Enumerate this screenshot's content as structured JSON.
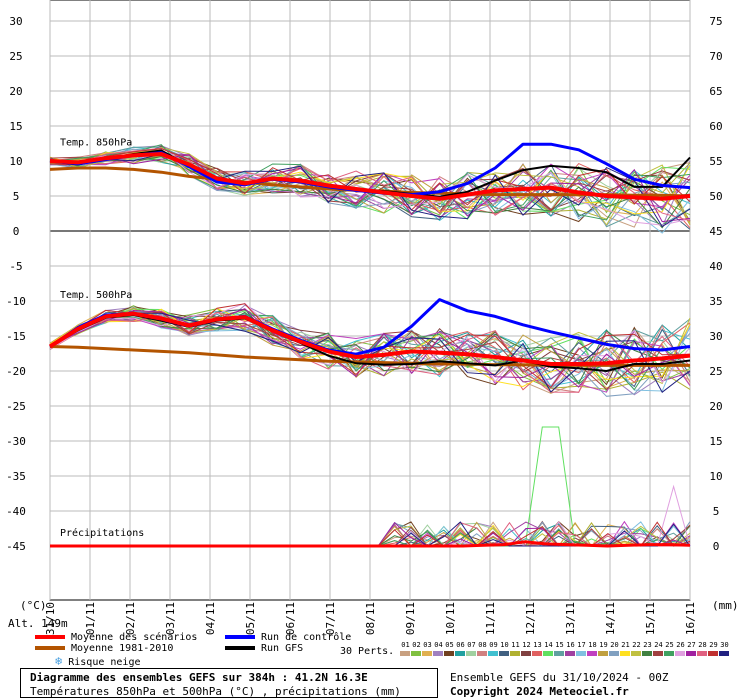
{
  "chart_data": {
    "type": "line",
    "title": "Diagramme des ensembles GEFS sur 384h : 41.2N 16.3E",
    "subtitle": "Températures 850hPa et 500hPa (°C) , précipitations (mm)",
    "left_axis": {
      "unit": "(°C)",
      "ticks": [
        "30",
        "25",
        "20",
        "15",
        "10",
        "5",
        "0",
        "-5",
        "-10",
        "-15",
        "-20",
        "-25",
        "-30",
        "-35",
        "-40",
        "-45"
      ]
    },
    "right_axis": {
      "unit": "(mm)",
      "ticks": [
        "75",
        "70",
        "65",
        "60",
        "55",
        "50",
        "45",
        "40",
        "35",
        "30",
        "25",
        "20",
        "15",
        "10",
        "5",
        "0"
      ]
    },
    "x_ticks": [
      "31/10",
      "01/11",
      "02/11",
      "03/11",
      "04/11",
      "05/11",
      "06/11",
      "07/11",
      "08/11",
      "09/11",
      "10/11",
      "11/11",
      "12/11",
      "13/11",
      "14/11",
      "15/11",
      "16/11"
    ],
    "panel_labels": {
      "t850": "Temp. 850hPa",
      "t500": "Temp. 500hPa",
      "precip": "Précipitations"
    },
    "series_850": {
      "moyenne_scenarios": [
        10,
        9.8,
        10.4,
        10.8,
        11,
        9.5,
        7.5,
        6.8,
        7.5,
        7.2,
        6.5,
        6,
        5.5,
        5,
        4.6,
        5.2,
        5.8,
        6,
        6.2,
        5.5,
        5,
        4.8,
        4.6,
        5
      ],
      "moyenne_1981_2010": [
        8.8,
        9,
        9,
        8.8,
        8.4,
        7.8,
        7.4,
        7,
        6.6,
        6.3,
        6,
        5.8,
        5.7,
        5.5,
        5.4,
        5.3,
        5.2,
        5.2,
        5.2,
        5.2,
        5.2,
        5.1,
        5.1,
        5
      ],
      "run_controle": [
        10,
        9.6,
        10.2,
        10.8,
        11.2,
        9.2,
        7,
        6.6,
        7.4,
        7,
        6.3,
        5.8,
        5.4,
        5.2,
        5.6,
        6.8,
        9,
        12.4,
        12.4,
        11.6,
        9.6,
        7.4,
        6.5,
        6.2
      ],
      "run_gfs": [
        10,
        9.5,
        10.3,
        11,
        11.5,
        9.3,
        7.2,
        6.8,
        7.6,
        7.2,
        6.5,
        6,
        5.7,
        5.3,
        4.9,
        5.6,
        7.2,
        8.7,
        9.3,
        9,
        8.4,
        6.3,
        6.3,
        10.5
      ]
    },
    "series_500": {
      "moyenne_scenarios": [
        -16.5,
        -14,
        -12.2,
        -11.8,
        -12.5,
        -13.5,
        -12.6,
        -12.3,
        -14.2,
        -15.8,
        -17.2,
        -18,
        -17.7,
        -17.2,
        -17.4,
        -17.6,
        -18,
        -18.5,
        -19,
        -19,
        -18.9,
        -18.5,
        -18.2,
        -17.8
      ],
      "moyenne_1981_2010": [
        -16.5,
        -16.6,
        -16.8,
        -17,
        -17.2,
        -17.4,
        -17.7,
        -18,
        -18.2,
        -18.4,
        -18.6,
        -18.7,
        -18.8,
        -18.9,
        -19,
        -19,
        -19.1,
        -19.1,
        -19.2,
        -19.2,
        -19.2,
        -19.2,
        -19.2,
        -19.2
      ],
      "run_controle": [
        -16.5,
        -13.8,
        -12,
        -11.8,
        -12.6,
        -13.6,
        -12.6,
        -12.2,
        -14,
        -15.6,
        -17,
        -17.6,
        -16.6,
        -13.6,
        -9.8,
        -11.4,
        -12.2,
        -13.4,
        -14.4,
        -15.3,
        -16.2,
        -16.8,
        -17,
        -16.5
      ],
      "run_gfs": [
        -16.5,
        -14.2,
        -12.4,
        -12,
        -12.8,
        -13.7,
        -12.8,
        -12.5,
        -14.3,
        -16,
        -17.8,
        -18.9,
        -19.1,
        -19,
        -18.6,
        -18.9,
        -19.2,
        -18.5,
        -19.4,
        -19.6,
        -20,
        -19,
        -19,
        -18.5
      ]
    },
    "precip_mean": [
      0,
      0,
      0,
      0,
      0,
      0,
      0,
      0,
      0,
      0,
      0,
      0,
      0,
      0,
      0,
      0,
      0,
      0,
      0,
      0,
      0,
      0.1,
      0.2,
      0.6,
      0.3,
      0.2,
      0.1,
      0,
      0.1,
      0.2,
      0.2,
      0.1
    ],
    "precip_peaks": [
      0,
      0,
      0,
      0,
      0,
      0,
      0,
      0,
      0,
      0,
      0,
      0,
      0,
      0,
      0,
      0,
      0,
      0,
      0,
      0.5,
      0.2,
      0,
      4.5,
      1.2,
      0,
      0.4,
      3.2,
      0,
      2.2,
      17,
      3,
      0.2,
      1,
      2.6,
      0.4,
      0.6,
      6.5,
      0
    ],
    "legend": [
      "Moyenne des scénarios",
      "Moyenne 1981-2010",
      "Run de contrôle",
      "Run GFS",
      "Risque neige"
    ],
    "colors": {
      "scenarios": "#ff0000",
      "clim": "#b35400",
      "controle": "#0000ff",
      "gfs": "#000000",
      "neige": "#4aa0e0"
    },
    "grid": true
  },
  "labels": {
    "alt": "Alt. 149m",
    "perts": "30 Perts.",
    "pert_numbers": [
      "01",
      "02",
      "03",
      "04",
      "05",
      "06",
      "07",
      "08",
      "09",
      "10",
      "11",
      "12",
      "13",
      "14",
      "15",
      "16",
      "17",
      "18",
      "19",
      "20",
      "21",
      "22",
      "23",
      "24",
      "25",
      "26",
      "27",
      "28",
      "29",
      "30"
    ],
    "pert_colors": [
      "#c8a080",
      "#80c040",
      "#e0b050",
      "#a080c0",
      "#704020",
      "#20a0a0",
      "#a0d0a0",
      "#d08080",
      "#40c0d0",
      "#406080",
      "#b0b030",
      "#804040",
      "#e06060",
      "#60e060",
      "#60a0a0",
      "#a040a0",
      "#80c0e0",
      "#c040c0",
      "#c0a040",
      "#80a0c0",
      "#ffe020",
      "#c0c040",
      "#408040",
      "#a04040",
      "#40a060",
      "#e0a0e0",
      "#a020a0",
      "#e06080",
      "#c03030",
      "#202080"
    ],
    "footer_ensemble": "Ensemble GEFS du 31/10/2024 - 00Z",
    "footer_copyright": "Copyright 2024 Meteociel.fr"
  }
}
